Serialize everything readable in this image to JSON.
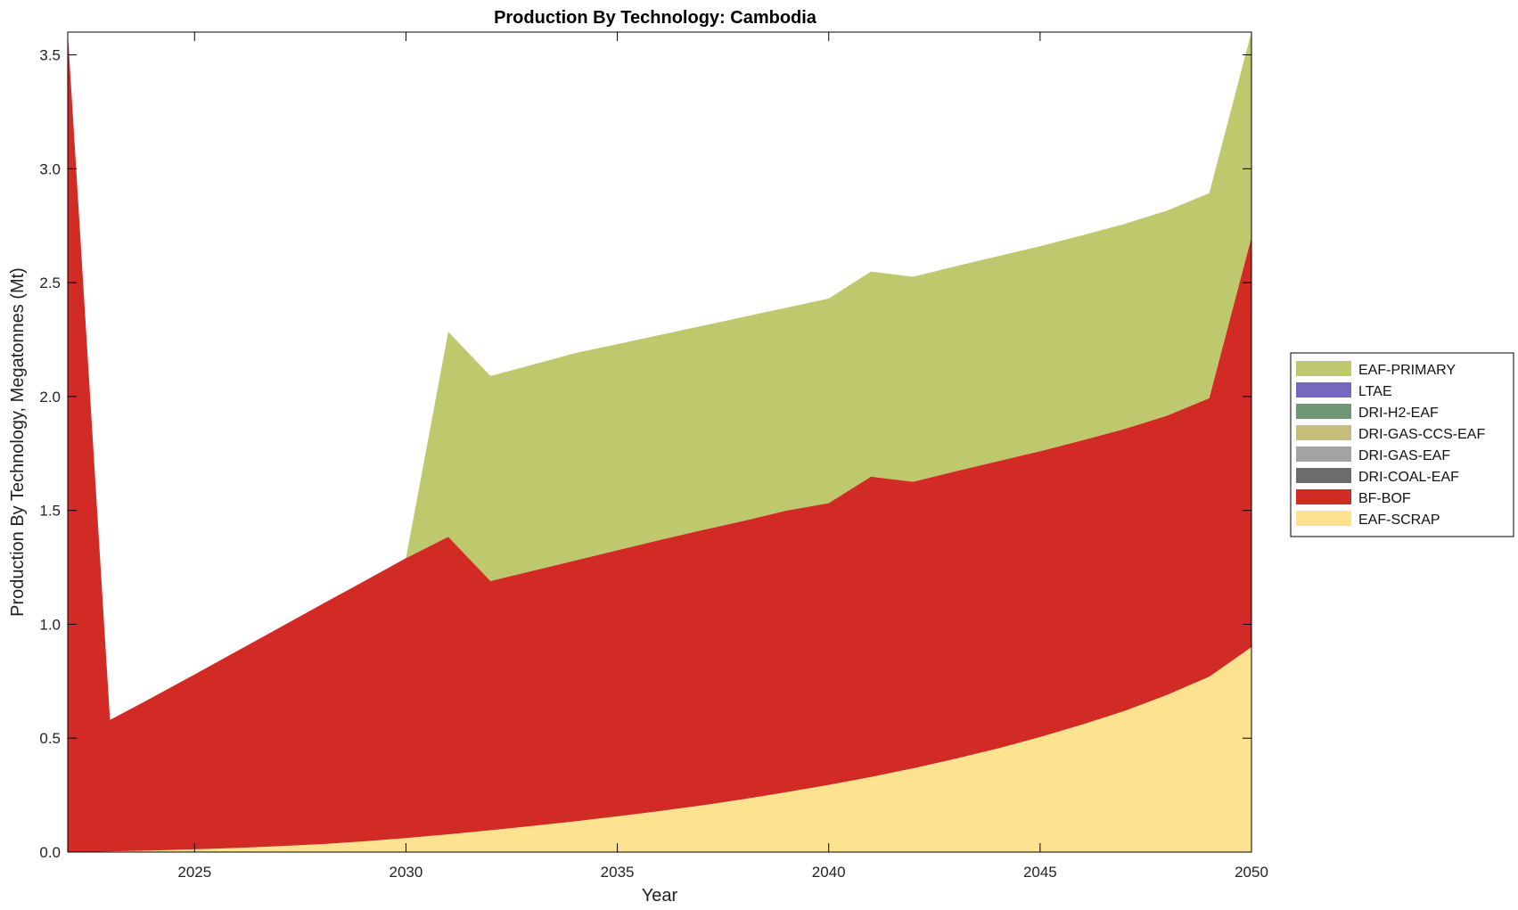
{
  "chart_data": {
    "type": "area",
    "stacked": true,
    "title": "Production By Technology: Cambodia",
    "xlabel": "Year",
    "ylabel": "Production By Technology, Megatonnes (Mt)",
    "xlim": [
      2022,
      2050
    ],
    "ylim": [
      0,
      3.6
    ],
    "xticks": [
      2025,
      2030,
      2035,
      2040,
      2045,
      2050
    ],
    "xtick_labels": [
      "2025",
      "2030",
      "2035",
      "2040",
      "2045",
      "2050"
    ],
    "yticks": [
      0,
      0.5,
      1,
      1.5,
      2,
      2.5,
      3,
      3.5
    ],
    "ytick_labels": [
      "0.0",
      "0.5",
      "1.0",
      "1.5",
      "2.0",
      "2.5",
      "3.0",
      "3.5"
    ],
    "legend_position": "outside-right",
    "x": [
      2022,
      2023,
      2024,
      2025,
      2026,
      2027,
      2028,
      2029,
      2030,
      2031,
      2032,
      2033,
      2034,
      2035,
      2036,
      2037,
      2038,
      2039,
      2040,
      2041,
      2042,
      2043,
      2044,
      2045,
      2046,
      2047,
      2048,
      2049,
      2050
    ],
    "series": [
      {
        "name": "EAF-SCRAP",
        "color": "#fde390",
        "values": [
          0.0,
          0.003,
          0.007,
          0.012,
          0.018,
          0.026,
          0.035,
          0.047,
          0.062,
          0.078,
          0.096,
          0.115,
          0.135,
          0.157,
          0.18,
          0.205,
          0.233,
          0.263,
          0.295,
          0.33,
          0.368,
          0.41,
          0.455,
          0.505,
          0.56,
          0.62,
          0.69,
          0.77,
          0.9
        ]
      },
      {
        "name": "BF-BOF",
        "color": "#d22a24",
        "values": [
          3.6,
          0.577,
          0.672,
          0.768,
          0.864,
          0.958,
          1.052,
          1.141,
          1.228,
          1.306,
          1.094,
          1.12,
          1.145,
          1.168,
          1.19,
          1.208,
          1.222,
          1.236,
          1.237,
          1.318,
          1.258,
          1.262,
          1.261,
          1.255,
          1.248,
          1.238,
          1.226,
          1.223,
          1.8
        ]
      },
      {
        "name": "DRI-COAL-EAF",
        "color": "#6c6c6c",
        "values": [
          0,
          0,
          0,
          0,
          0,
          0,
          0,
          0,
          0,
          0,
          0,
          0,
          0,
          0,
          0,
          0,
          0,
          0,
          0,
          0,
          0,
          0,
          0,
          0,
          0,
          0,
          0,
          0,
          0
        ]
      },
      {
        "name": "DRI-GAS-EAF",
        "color": "#a3a3a3",
        "values": [
          0,
          0,
          0,
          0,
          0,
          0,
          0,
          0,
          0,
          0,
          0,
          0,
          0,
          0,
          0,
          0,
          0,
          0,
          0,
          0,
          0,
          0,
          0,
          0,
          0,
          0,
          0,
          0,
          0
        ]
      },
      {
        "name": "DRI-GAS-CCS-EAF",
        "color": "#c5bd7b",
        "values": [
          0,
          0,
          0,
          0,
          0,
          0,
          0,
          0,
          0,
          0,
          0,
          0,
          0,
          0,
          0,
          0,
          0,
          0,
          0,
          0,
          0,
          0,
          0,
          0,
          0,
          0,
          0,
          0,
          0
        ]
      },
      {
        "name": "DRI-H2-EAF",
        "color": "#729778",
        "values": [
          0,
          0,
          0,
          0,
          0,
          0,
          0,
          0,
          0,
          0,
          0,
          0,
          0,
          0,
          0,
          0,
          0,
          0,
          0,
          0,
          0,
          0,
          0,
          0,
          0,
          0,
          0,
          0,
          0
        ]
      },
      {
        "name": "LTAE",
        "color": "#7469bd",
        "values": [
          0,
          0,
          0,
          0,
          0,
          0,
          0,
          0,
          0,
          0,
          0,
          0,
          0,
          0,
          0,
          0,
          0,
          0,
          0,
          0,
          0,
          0,
          0,
          0,
          0,
          0,
          0,
          0,
          0
        ]
      },
      {
        "name": "EAF-PRIMARY",
        "color": "#bec86c",
        "values": [
          0,
          0,
          0,
          0,
          0,
          0,
          0,
          0,
          0,
          0.9,
          0.9,
          0.905,
          0.91,
          0.905,
          0.9,
          0.897,
          0.895,
          0.891,
          0.898,
          0.9,
          0.9,
          0.9,
          0.9,
          0.9,
          0.9,
          0.9,
          0.9,
          0.9,
          0.9
        ]
      }
    ],
    "legend_order": [
      "EAF-PRIMARY",
      "LTAE",
      "DRI-H2-EAF",
      "DRI-GAS-CCS-EAF",
      "DRI-GAS-EAF",
      "DRI-COAL-EAF",
      "BF-BOF",
      "EAF-SCRAP"
    ]
  }
}
